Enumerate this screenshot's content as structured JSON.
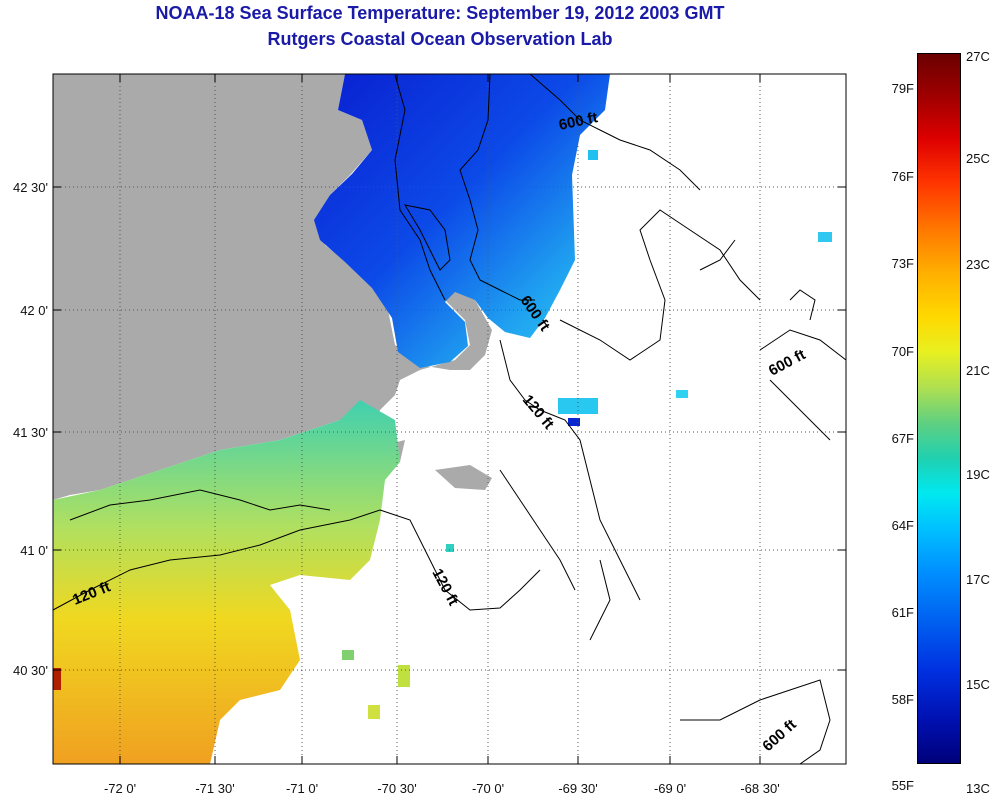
{
  "title": {
    "line1": "NOAA-18 Sea Surface Temperature:  September 19, 2012 2003 GMT",
    "line2": "Rutgers Coastal Ocean Observation Lab"
  },
  "axes": {
    "lat_labels": [
      "42 30'",
      "42 0'",
      "41 30'",
      "41 0'",
      "40 30'"
    ],
    "lon_labels": [
      "-72 0'",
      "-71 30'",
      "-71 0'",
      "-70 30'",
      "-70 0'",
      "-69 30'",
      "-69 0'",
      "-68 30'"
    ]
  },
  "contour_labels": [
    "600 ft",
    "600 ft",
    "600 ft",
    "600 ft",
    "120 ft",
    "120 ft",
    "120 ft"
  ],
  "colorbar": {
    "fahrenheit": [
      "79F",
      "76F",
      "73F",
      "70F",
      "67F",
      "64F",
      "61F",
      "58F",
      "55F"
    ],
    "celsius": [
      "27C",
      "25C",
      "23C",
      "21C",
      "19C",
      "17C",
      "15C",
      "13C"
    ]
  },
  "colors": {
    "land": "#aaaaaa",
    "title": "#1a1aa8",
    "cold": "#0a2ad8",
    "warm": "#f0a020"
  }
}
